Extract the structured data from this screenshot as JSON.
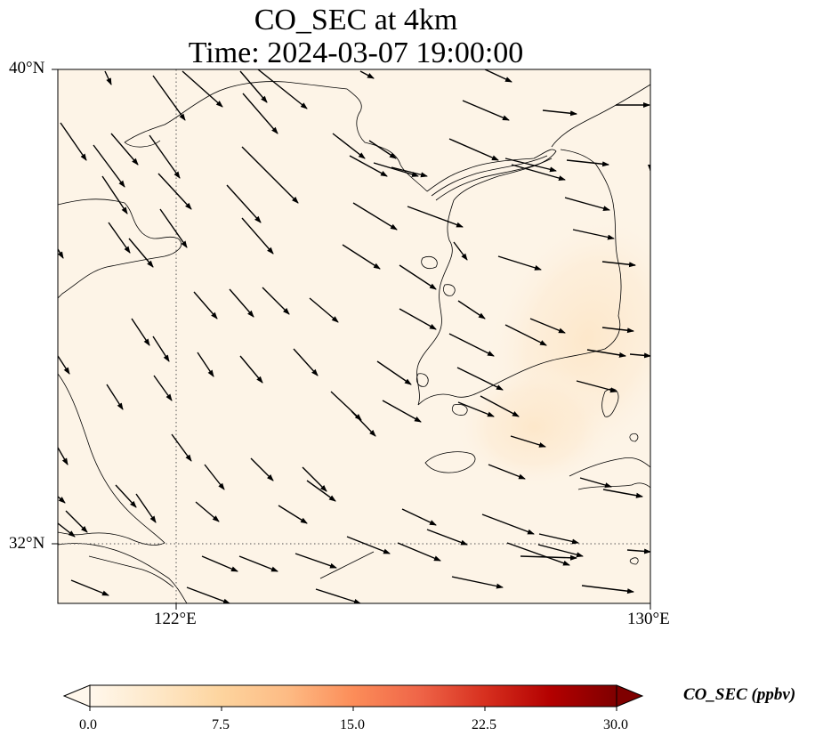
{
  "map": {
    "title_line1": "CO_SEC at 4km",
    "title_line2": "Time: 2024-03-07 19:00:00",
    "lat_labels": [
      "40°N",
      "32°N"
    ],
    "lon_labels": [
      "122°E",
      "130°E"
    ],
    "lon_range": [
      120,
      130
    ],
    "lat_range": [
      31,
      40
    ],
    "gridlines": {
      "lon": 122,
      "lat": 32
    },
    "field_max_location": "east, near 128.5°E 35°N",
    "field_color": "#fdecd2",
    "background_color": "#fdf4e7",
    "coastline_color": "#000000",
    "vector_color": "#000000",
    "wind_direction": "northwesterly in the west, westerly in the east"
  },
  "colorbar": {
    "label": "CO_SEC (ppbv)",
    "ticks": [
      "0.0",
      "7.5",
      "15.0",
      "22.5",
      "30.0"
    ],
    "range": [
      0,
      30
    ],
    "colormap": "OrRd",
    "colors": [
      "#fff7ec",
      "#fee8c8",
      "#fdd49e",
      "#fdbb84",
      "#fc8d59",
      "#ef6548",
      "#d7301f",
      "#b30000",
      "#7f0000"
    ],
    "extend": "both"
  }
}
